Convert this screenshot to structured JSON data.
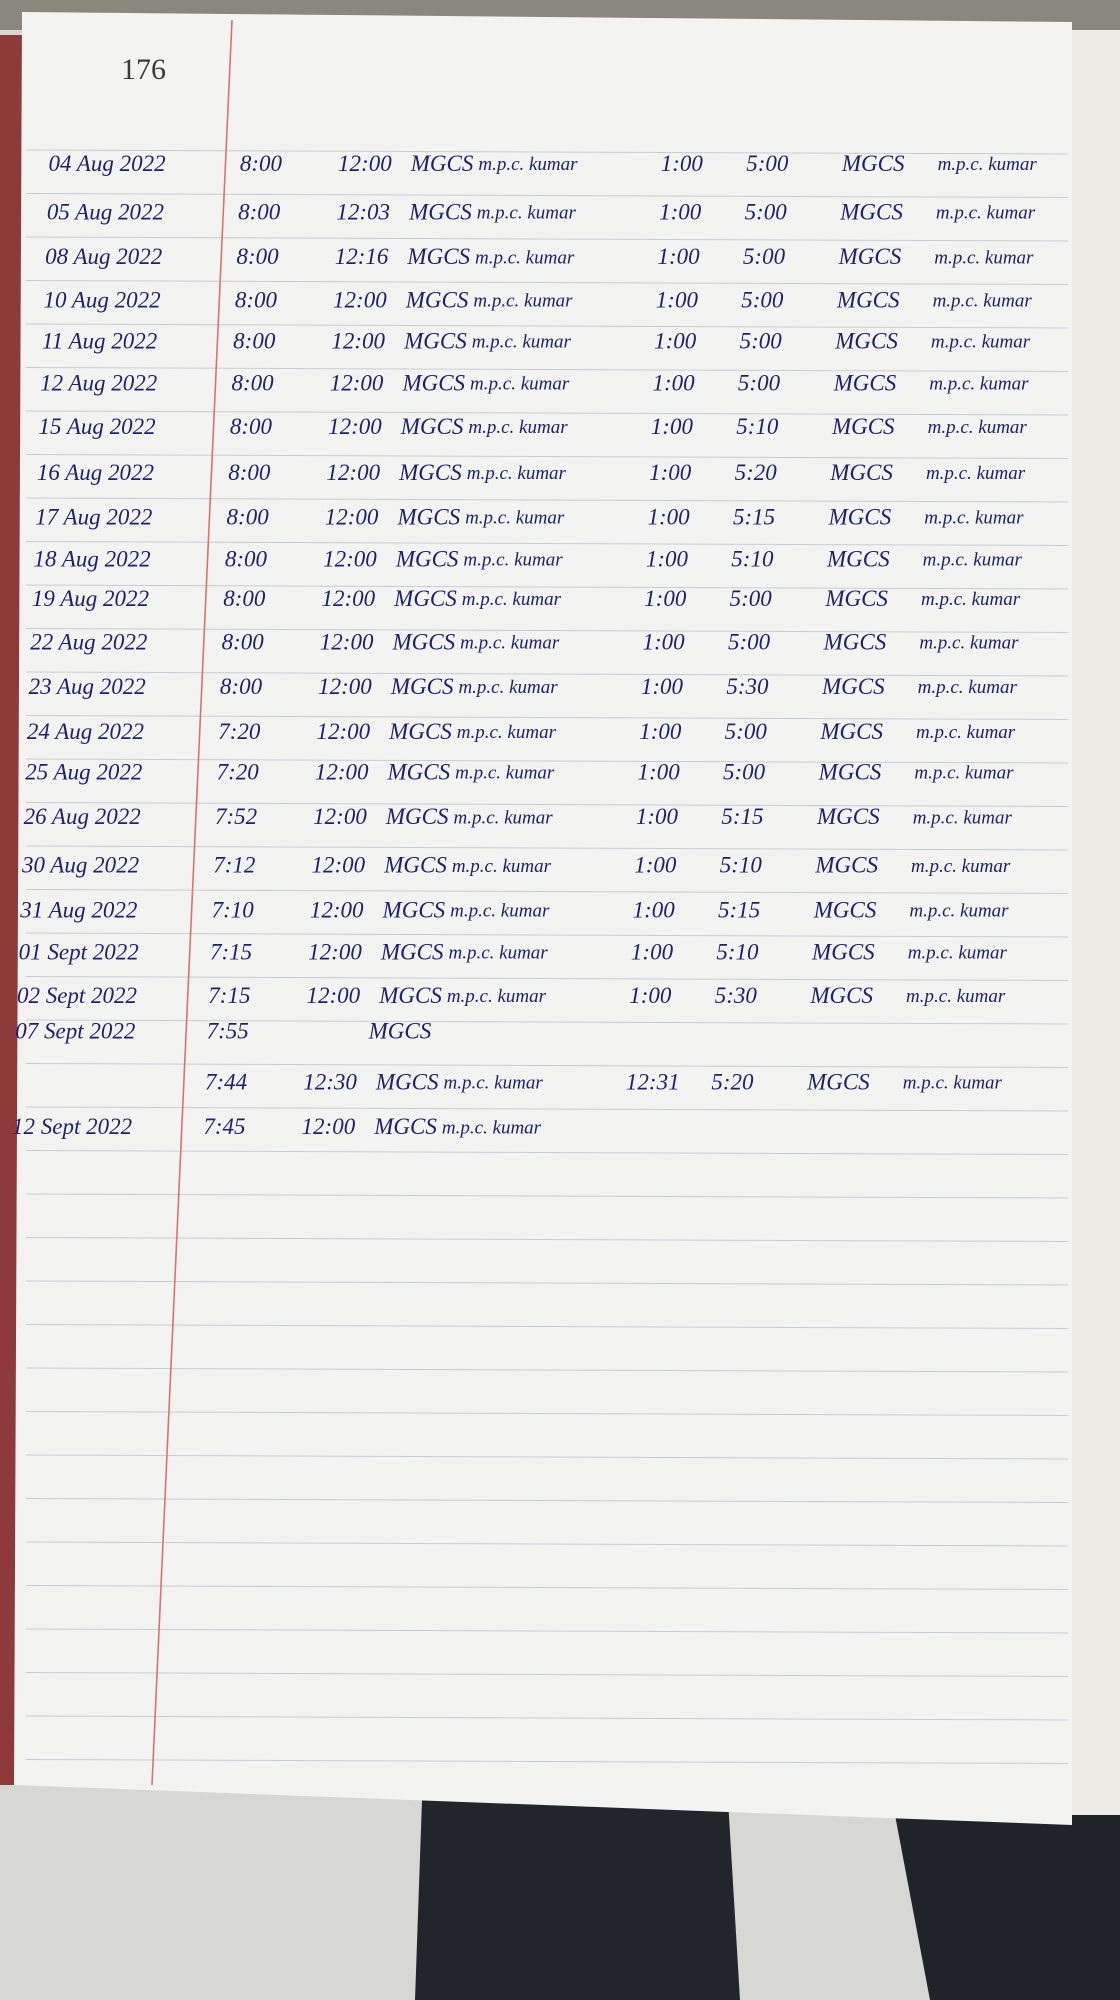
{
  "page_number": "176",
  "rows": [
    {
      "date": "04 Aug 2022",
      "in": "8:00",
      "out": "12:00",
      "place": "MGCS",
      "sig": "m.p.c. kumar",
      "in2": "1:00",
      "out2": "5:00",
      "place2": "MGCS",
      "sig2": "m.p.c. kumar"
    },
    {
      "date": "05 Aug 2022",
      "in": "8:00",
      "out": "12:03",
      "place": "MGCS",
      "sig": "m.p.c. kumar",
      "in2": "1:00",
      "out2": "5:00",
      "place2": "MGCS",
      "sig2": "m.p.c. kumar"
    },
    {
      "date": "08 Aug 2022",
      "in": "8:00",
      "out": "12:16",
      "place": "MGCS",
      "sig": "m.p.c. kumar",
      "in2": "1:00",
      "out2": "5:00",
      "place2": "MGCS",
      "sig2": "m.p.c. kumar"
    },
    {
      "date": "10 Aug 2022",
      "in": "8:00",
      "out": "12:00",
      "place": "MGCS",
      "sig": "m.p.c. kumar",
      "in2": "1:00",
      "out2": "5:00",
      "place2": "MGCS",
      "sig2": "m.p.c. kumar"
    },
    {
      "date": "11 Aug 2022",
      "in": "8:00",
      "out": "12:00",
      "place": "MGCS",
      "sig": "m.p.c. kumar",
      "in2": "1:00",
      "out2": "5:00",
      "place2": "MGCS",
      "sig2": "m.p.c. kumar"
    },
    {
      "date": "12 Aug 2022",
      "in": "8:00",
      "out": "12:00",
      "place": "MGCS",
      "sig": "m.p.c. kumar",
      "in2": "1:00",
      "out2": "5:00",
      "place2": "MGCS",
      "sig2": "m.p.c. kumar"
    },
    {
      "date": "15 Aug 2022",
      "in": "8:00",
      "out": "12:00",
      "place": "MGCS",
      "sig": "m.p.c. kumar",
      "in2": "1:00",
      "out2": "5:10",
      "place2": "MGCS",
      "sig2": "m.p.c. kumar"
    },
    {
      "date": "16 Aug 2022",
      "in": "8:00",
      "out": "12:00",
      "place": "MGCS",
      "sig": "m.p.c. kumar",
      "in2": "1:00",
      "out2": "5:20",
      "place2": "MGCS",
      "sig2": "m.p.c. kumar"
    },
    {
      "date": "17 Aug 2022",
      "in": "8:00",
      "out": "12:00",
      "place": "MGCS",
      "sig": "m.p.c. kumar",
      "in2": "1:00",
      "out2": "5:15",
      "place2": "MGCS",
      "sig2": "m.p.c. kumar"
    },
    {
      "date": "18 Aug 2022",
      "in": "8:00",
      "out": "12:00",
      "place": "MGCS",
      "sig": "m.p.c. kumar",
      "in2": "1:00",
      "out2": "5:10",
      "place2": "MGCS",
      "sig2": "m.p.c. kumar"
    },
    {
      "date": "19 Aug 2022",
      "in": "8:00",
      "out": "12:00",
      "place": "MGCS",
      "sig": "m.p.c. kumar",
      "in2": "1:00",
      "out2": "5:00",
      "place2": "MGCS",
      "sig2": "m.p.c. kumar"
    },
    {
      "date": "22 Aug 2022",
      "in": "8:00",
      "out": "12:00",
      "place": "MGCS",
      "sig": "m.p.c. kumar",
      "in2": "1:00",
      "out2": "5:00",
      "place2": "MGCS",
      "sig2": "m.p.c. kumar"
    },
    {
      "date": "23 Aug 2022",
      "in": "8:00",
      "out": "12:00",
      "place": "MGCS",
      "sig": "m.p.c. kumar",
      "in2": "1:00",
      "out2": "5:30",
      "place2": "MGCS",
      "sig2": "m.p.c. kumar"
    },
    {
      "date": "24 Aug 2022",
      "in": "7:20",
      "out": "12:00",
      "place": "MGCS",
      "sig": "m.p.c. kumar",
      "in2": "1:00",
      "out2": "5:00",
      "place2": "MGCS",
      "sig2": "m.p.c. kumar"
    },
    {
      "date": "25 Aug 2022",
      "in": "7:20",
      "out": "12:00",
      "place": "MGCS",
      "sig": "m.p.c. kumar",
      "in2": "1:00",
      "out2": "5:00",
      "place2": "MGCS",
      "sig2": "m.p.c. kumar"
    },
    {
      "date": "26 Aug 2022",
      "in": "7:52",
      "out": "12:00",
      "place": "MGCS",
      "sig": "m.p.c. kumar",
      "in2": "1:00",
      "out2": "5:15",
      "place2": "MGCS",
      "sig2": "m.p.c. kumar"
    },
    {
      "date": "30 Aug 2022",
      "in": "7:12",
      "out": "12:00",
      "place": "MGCS",
      "sig": "m.p.c. kumar",
      "in2": "1:00",
      "out2": "5:10",
      "place2": "MGCS",
      "sig2": "m.p.c. kumar"
    },
    {
      "date": "31 Aug 2022",
      "in": "7:10",
      "out": "12:00",
      "place": "MGCS",
      "sig": "m.p.c. kumar",
      "in2": "1:00",
      "out2": "5:15",
      "place2": "MGCS",
      "sig2": "m.p.c. kumar"
    },
    {
      "date": "01 Sept 2022",
      "in": "7:15",
      "out": "12:00",
      "place": "MGCS",
      "sig": "m.p.c. kumar",
      "in2": "1:00",
      "out2": "5:10",
      "place2": "MGCS",
      "sig2": "m.p.c. kumar"
    },
    {
      "date": "02 Sept 2022",
      "in": "7:15",
      "out": "12:00",
      "place": "MGCS",
      "sig": "m.p.c. kumar",
      "in2": "1:00",
      "out2": "5:30",
      "place2": "MGCS",
      "sig2": "m.p.c. kumar"
    },
    {
      "date": "07 Sept 2022",
      "in": "7:55",
      "mark": "MGCS"
    },
    {
      "in": "7:44",
      "out": "12:30",
      "place": "MGCS",
      "sig": "m.p.c. kumar",
      "in2": "12:31",
      "out2": "5:20",
      "place2": "MGCS",
      "sig2": "m.p.c. kumar"
    },
    {
      "date": "12 Sept 2022",
      "in": "7:45",
      "out": "12:00",
      "place": "MGCS",
      "sig": "m.p.c. kumar"
    }
  ]
}
